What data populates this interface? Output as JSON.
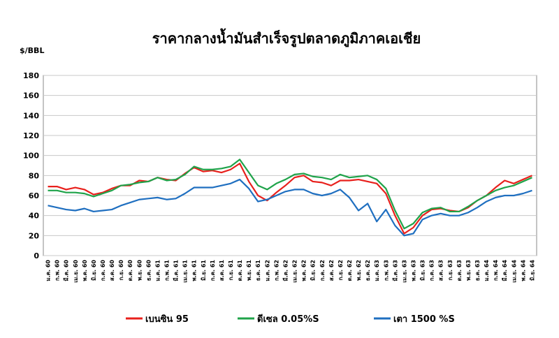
{
  "chart_data": {
    "type": "line",
    "title": "ราคากลางน้ำมันสำเร็จรูปตลาดภูมิภาคเอเชีย",
    "y_label": "$/BBL",
    "categories": [
      "ม.ค. 60",
      "ก.พ. 60",
      "มี.ค. 60",
      "เม.ย. 60",
      "พ.ค. 60",
      "มิ.ย. 60",
      "ก.ค. 60",
      "ส.ค. 60",
      "ก.ย. 60",
      "ต.ค. 60",
      "พ.ย. 60",
      "ธ.ค. 60",
      "ม.ค. 61",
      "ก.พ. 61",
      "มี.ค. 61",
      "เม.ย. 61",
      "พ.ค. 61",
      "มิ.ย. 61",
      "ก.ค. 61",
      "ส.ค. 61",
      "ก.ย. 61",
      "ต.ค. 61",
      "พ.ย. 61",
      "ธ.ค. 61",
      "ม.ค. 62",
      "ก.พ. 62",
      "มี.ค. 62",
      "เม.ย. 62",
      "พ.ค. 62",
      "มิ.ย. 62",
      "ก.ค. 62",
      "ส.ค. 62",
      "ก.ย. 62",
      "ต.ค. 62",
      "พ.ย. 62",
      "ธ.ค. 62",
      "ม.ค. 63",
      "ก.พ. 63",
      "มี.ค. 63",
      "เม.ย. 63",
      "พ.ค. 63",
      "มิ.ย. 63",
      "ก.ค. 63",
      "ส.ค. 63",
      "ก.ย. 63",
      "ต.ค. 63",
      "พ.ย. 63",
      "ธ.ค. 63",
      "ม.ค. 64",
      "ก.พ. 64",
      "มี.ค. 64",
      "เม.ย. 64",
      "พ.ค. 64",
      "มิ.ย. 64"
    ],
    "series": [
      {
        "name": "เบนซิน 95",
        "color": "#e8201c",
        "values": [
          69,
          69,
          66,
          68,
          66,
          61,
          63,
          67,
          70,
          70,
          75,
          74,
          78,
          76,
          75,
          82,
          88,
          84,
          85,
          83,
          86,
          92,
          74,
          60,
          55,
          63,
          70,
          78,
          80,
          74,
          73,
          70,
          75,
          75,
          76,
          74,
          72,
          62,
          40,
          22,
          28,
          40,
          46,
          47,
          45,
          44,
          48,
          55,
          60,
          68,
          75,
          72,
          76,
          80
        ]
      },
      {
        "name": "ดีเซล 0.05%S",
        "color": "#1fa34a",
        "values": [
          65,
          65,
          63,
          63,
          62,
          59,
          62,
          65,
          70,
          71,
          73,
          74,
          78,
          75,
          76,
          81,
          89,
          86,
          86,
          87,
          89,
          96,
          83,
          70,
          66,
          72,
          76,
          81,
          82,
          79,
          78,
          76,
          81,
          78,
          79,
          80,
          76,
          67,
          45,
          27,
          32,
          43,
          47,
          48,
          44,
          44,
          49,
          55,
          60,
          65,
          68,
          70,
          74,
          78
        ]
      },
      {
        "name": "เตา 1500 %S",
        "color": "#1f6fc0",
        "values": [
          50,
          48,
          46,
          45,
          47,
          44,
          45,
          46,
          50,
          53,
          56,
          57,
          58,
          56,
          57,
          62,
          68,
          68,
          68,
          70,
          72,
          76,
          67,
          54,
          56,
          60,
          64,
          66,
          66,
          62,
          60,
          62,
          66,
          58,
          45,
          52,
          34,
          46,
          30,
          20,
          22,
          36,
          40,
          42,
          40,
          40,
          43,
          48,
          54,
          58,
          60,
          60,
          62,
          65
        ]
      }
    ],
    "ylim": [
      0,
      180
    ],
    "yticks": [
      0,
      20,
      40,
      60,
      80,
      100,
      120,
      140,
      160,
      180
    ],
    "grid": true
  }
}
